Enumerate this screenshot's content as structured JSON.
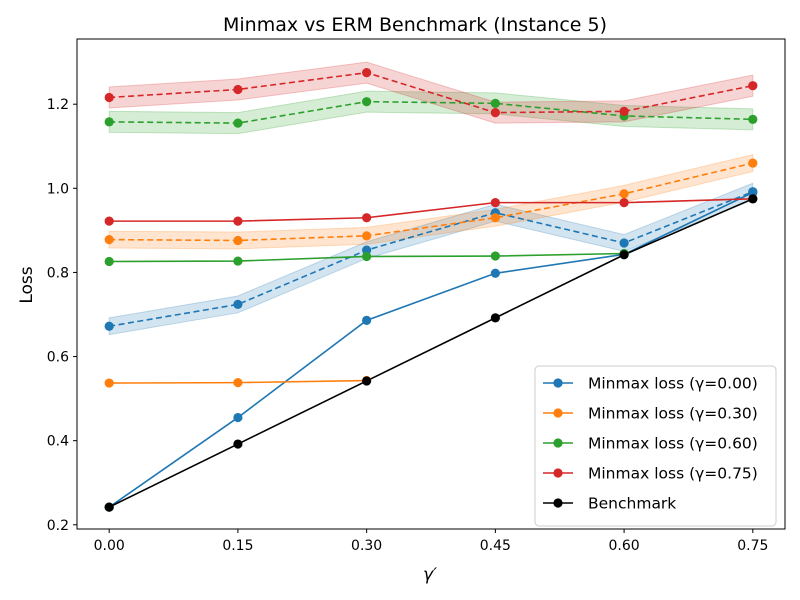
{
  "chart_data": {
    "type": "line",
    "title": "Minmax vs ERM Benchmark (Instance 5)",
    "xlabel": "γ′",
    "ylabel": "Loss",
    "x": [
      0.0,
      0.15,
      0.3,
      0.45,
      0.6,
      0.75
    ],
    "x_tick_labels": [
      "0.00",
      "0.15",
      "0.30",
      "0.45",
      "0.60",
      "0.75"
    ],
    "y_ticks": [
      0.2,
      0.4,
      0.6,
      0.8,
      1.0,
      1.2
    ],
    "y_tick_labels": [
      "0.2",
      "0.4",
      "0.6",
      "0.8",
      "1.0",
      "1.2"
    ],
    "xlim": [
      -0.0375,
      0.7875
    ],
    "ylim": [
      0.19,
      1.355
    ],
    "legend_position": "lower-right",
    "solid_series": [
      {
        "name": "Minmax loss (γ=0.00)",
        "color": "#1f77b4",
        "values": [
          0.242,
          0.455,
          0.686,
          0.798,
          0.843,
          0.99
        ]
      },
      {
        "name": "Minmax loss (γ=0.30)",
        "color": "#ff7f0e",
        "values": [
          0.537,
          0.538,
          0.543,
          null,
          null,
          null
        ]
      },
      {
        "name": "Minmax loss (γ=0.60)",
        "color": "#2ca02c",
        "values": [
          0.826,
          0.827,
          0.838,
          0.839,
          0.845,
          null
        ]
      },
      {
        "name": "Minmax loss (γ=0.75)",
        "color": "#d62728",
        "values": [
          0.922,
          0.922,
          0.93,
          0.966,
          0.966,
          0.975
        ]
      },
      {
        "name": "Benchmark",
        "color": "#000000",
        "values": [
          0.242,
          0.392,
          0.542,
          0.692,
          0.842,
          0.975
        ]
      }
    ],
    "dashed_series": [
      {
        "color": "#1f77b4",
        "values": [
          0.672,
          0.724,
          0.853,
          0.942,
          0.87,
          0.992
        ],
        "lower": [
          0.652,
          0.704,
          0.833,
          0.922,
          0.85,
          0.972
        ],
        "upper": [
          0.692,
          0.744,
          0.873,
          0.962,
          0.89,
          1.012
        ]
      },
      {
        "color": "#ff7f0e",
        "values": [
          0.878,
          0.876,
          0.887,
          0.93,
          0.987,
          1.06
        ],
        "lower": [
          0.858,
          0.856,
          0.867,
          0.91,
          0.967,
          1.04
        ],
        "upper": [
          0.898,
          0.896,
          0.907,
          0.95,
          1.007,
          1.08
        ]
      },
      {
        "color": "#2ca02c",
        "values": [
          1.158,
          1.155,
          1.206,
          1.202,
          1.172,
          1.164
        ],
        "lower": [
          1.133,
          1.13,
          1.181,
          1.177,
          1.147,
          1.139
        ],
        "upper": [
          1.183,
          1.18,
          1.231,
          1.227,
          1.197,
          1.189
        ]
      },
      {
        "color": "#d62728",
        "values": [
          1.216,
          1.235,
          1.275,
          1.18,
          1.183,
          1.244
        ],
        "lower": [
          1.191,
          1.21,
          1.25,
          1.155,
          1.158,
          1.219
        ],
        "upper": [
          1.241,
          1.26,
          1.3,
          1.205,
          1.208,
          1.269
        ]
      }
    ]
  }
}
